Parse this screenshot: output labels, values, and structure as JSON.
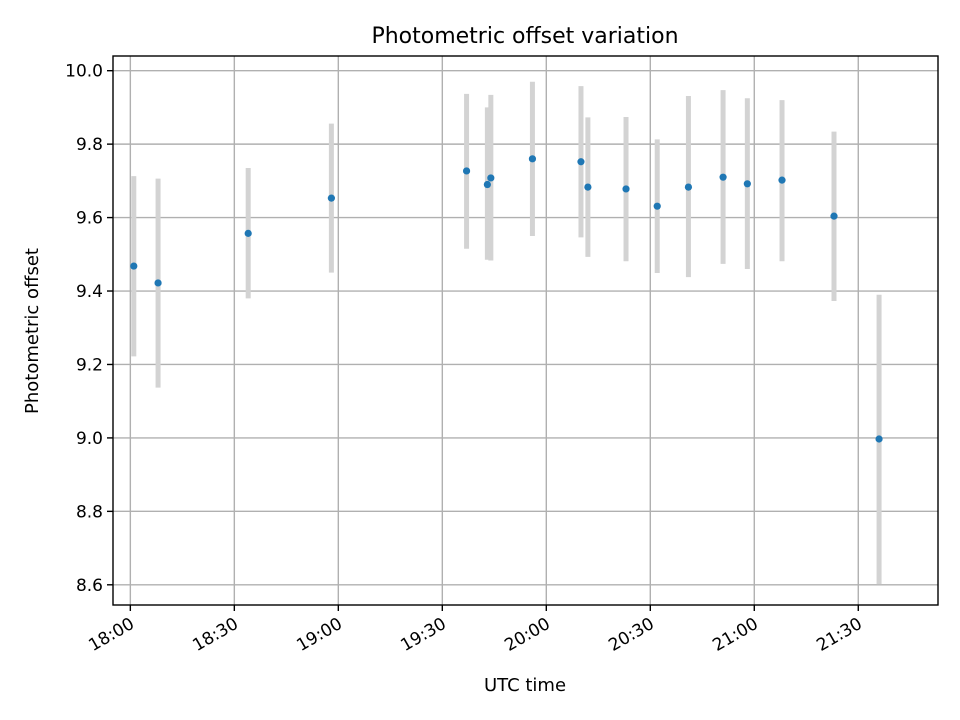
{
  "chart_data": {
    "type": "scatter",
    "title": "Photometric offset variation",
    "xlabel": "UTC time",
    "ylabel": "Photometric offset",
    "xlim": [
      "17:55",
      "21:53"
    ],
    "ylim": [
      8.545,
      10.04
    ],
    "xticks": [
      "18:00",
      "18:30",
      "19:00",
      "19:30",
      "20:00",
      "20:30",
      "21:00",
      "21:30"
    ],
    "yticks": [
      "8.6",
      "8.8",
      "9.0",
      "9.2",
      "9.4",
      "9.6",
      "9.8",
      "10.0"
    ],
    "grid": true,
    "legend": "none",
    "colors": {
      "point": "#1f77b4",
      "errorbar": "#d3d3d3"
    },
    "series": [
      {
        "points": [
          {
            "x": "18:01",
            "y": 9.468,
            "ylow": 9.222,
            "yhigh": 9.713
          },
          {
            "x": "18:08",
            "y": 9.422,
            "ylow": 9.137,
            "yhigh": 9.706
          },
          {
            "x": "18:34",
            "y": 9.557,
            "ylow": 9.38,
            "yhigh": 9.735
          },
          {
            "x": "18:58",
            "y": 9.653,
            "ylow": 9.45,
            "yhigh": 9.856
          },
          {
            "x": "19:37",
            "y": 9.727,
            "ylow": 9.515,
            "yhigh": 9.937
          },
          {
            "x": "19:43",
            "y": 9.69,
            "ylow": 9.485,
            "yhigh": 9.9
          },
          {
            "x": "19:44",
            "y": 9.708,
            "ylow": 9.483,
            "yhigh": 9.934
          },
          {
            "x": "19:56",
            "y": 9.76,
            "ylow": 9.55,
            "yhigh": 9.97
          },
          {
            "x": "20:10",
            "y": 9.752,
            "ylow": 9.546,
            "yhigh": 9.958
          },
          {
            "x": "20:12",
            "y": 9.683,
            "ylow": 9.493,
            "yhigh": 9.873
          },
          {
            "x": "20:23",
            "y": 9.678,
            "ylow": 9.481,
            "yhigh": 9.874
          },
          {
            "x": "20:32",
            "y": 9.631,
            "ylow": 9.449,
            "yhigh": 9.813
          },
          {
            "x": "20:41",
            "y": 9.683,
            "ylow": 9.438,
            "yhigh": 9.931
          },
          {
            "x": "20:51",
            "y": 9.71,
            "ylow": 9.474,
            "yhigh": 9.947
          },
          {
            "x": "20:58",
            "y": 9.692,
            "ylow": 9.46,
            "yhigh": 9.925
          },
          {
            "x": "21:08",
            "y": 9.702,
            "ylow": 9.481,
            "yhigh": 9.92
          },
          {
            "x": "21:23",
            "y": 9.604,
            "ylow": 9.373,
            "yhigh": 9.834
          },
          {
            "x": "21:36",
            "y": 8.997,
            "ylow": 8.602,
            "yhigh": 9.39
          }
        ]
      }
    ]
  }
}
